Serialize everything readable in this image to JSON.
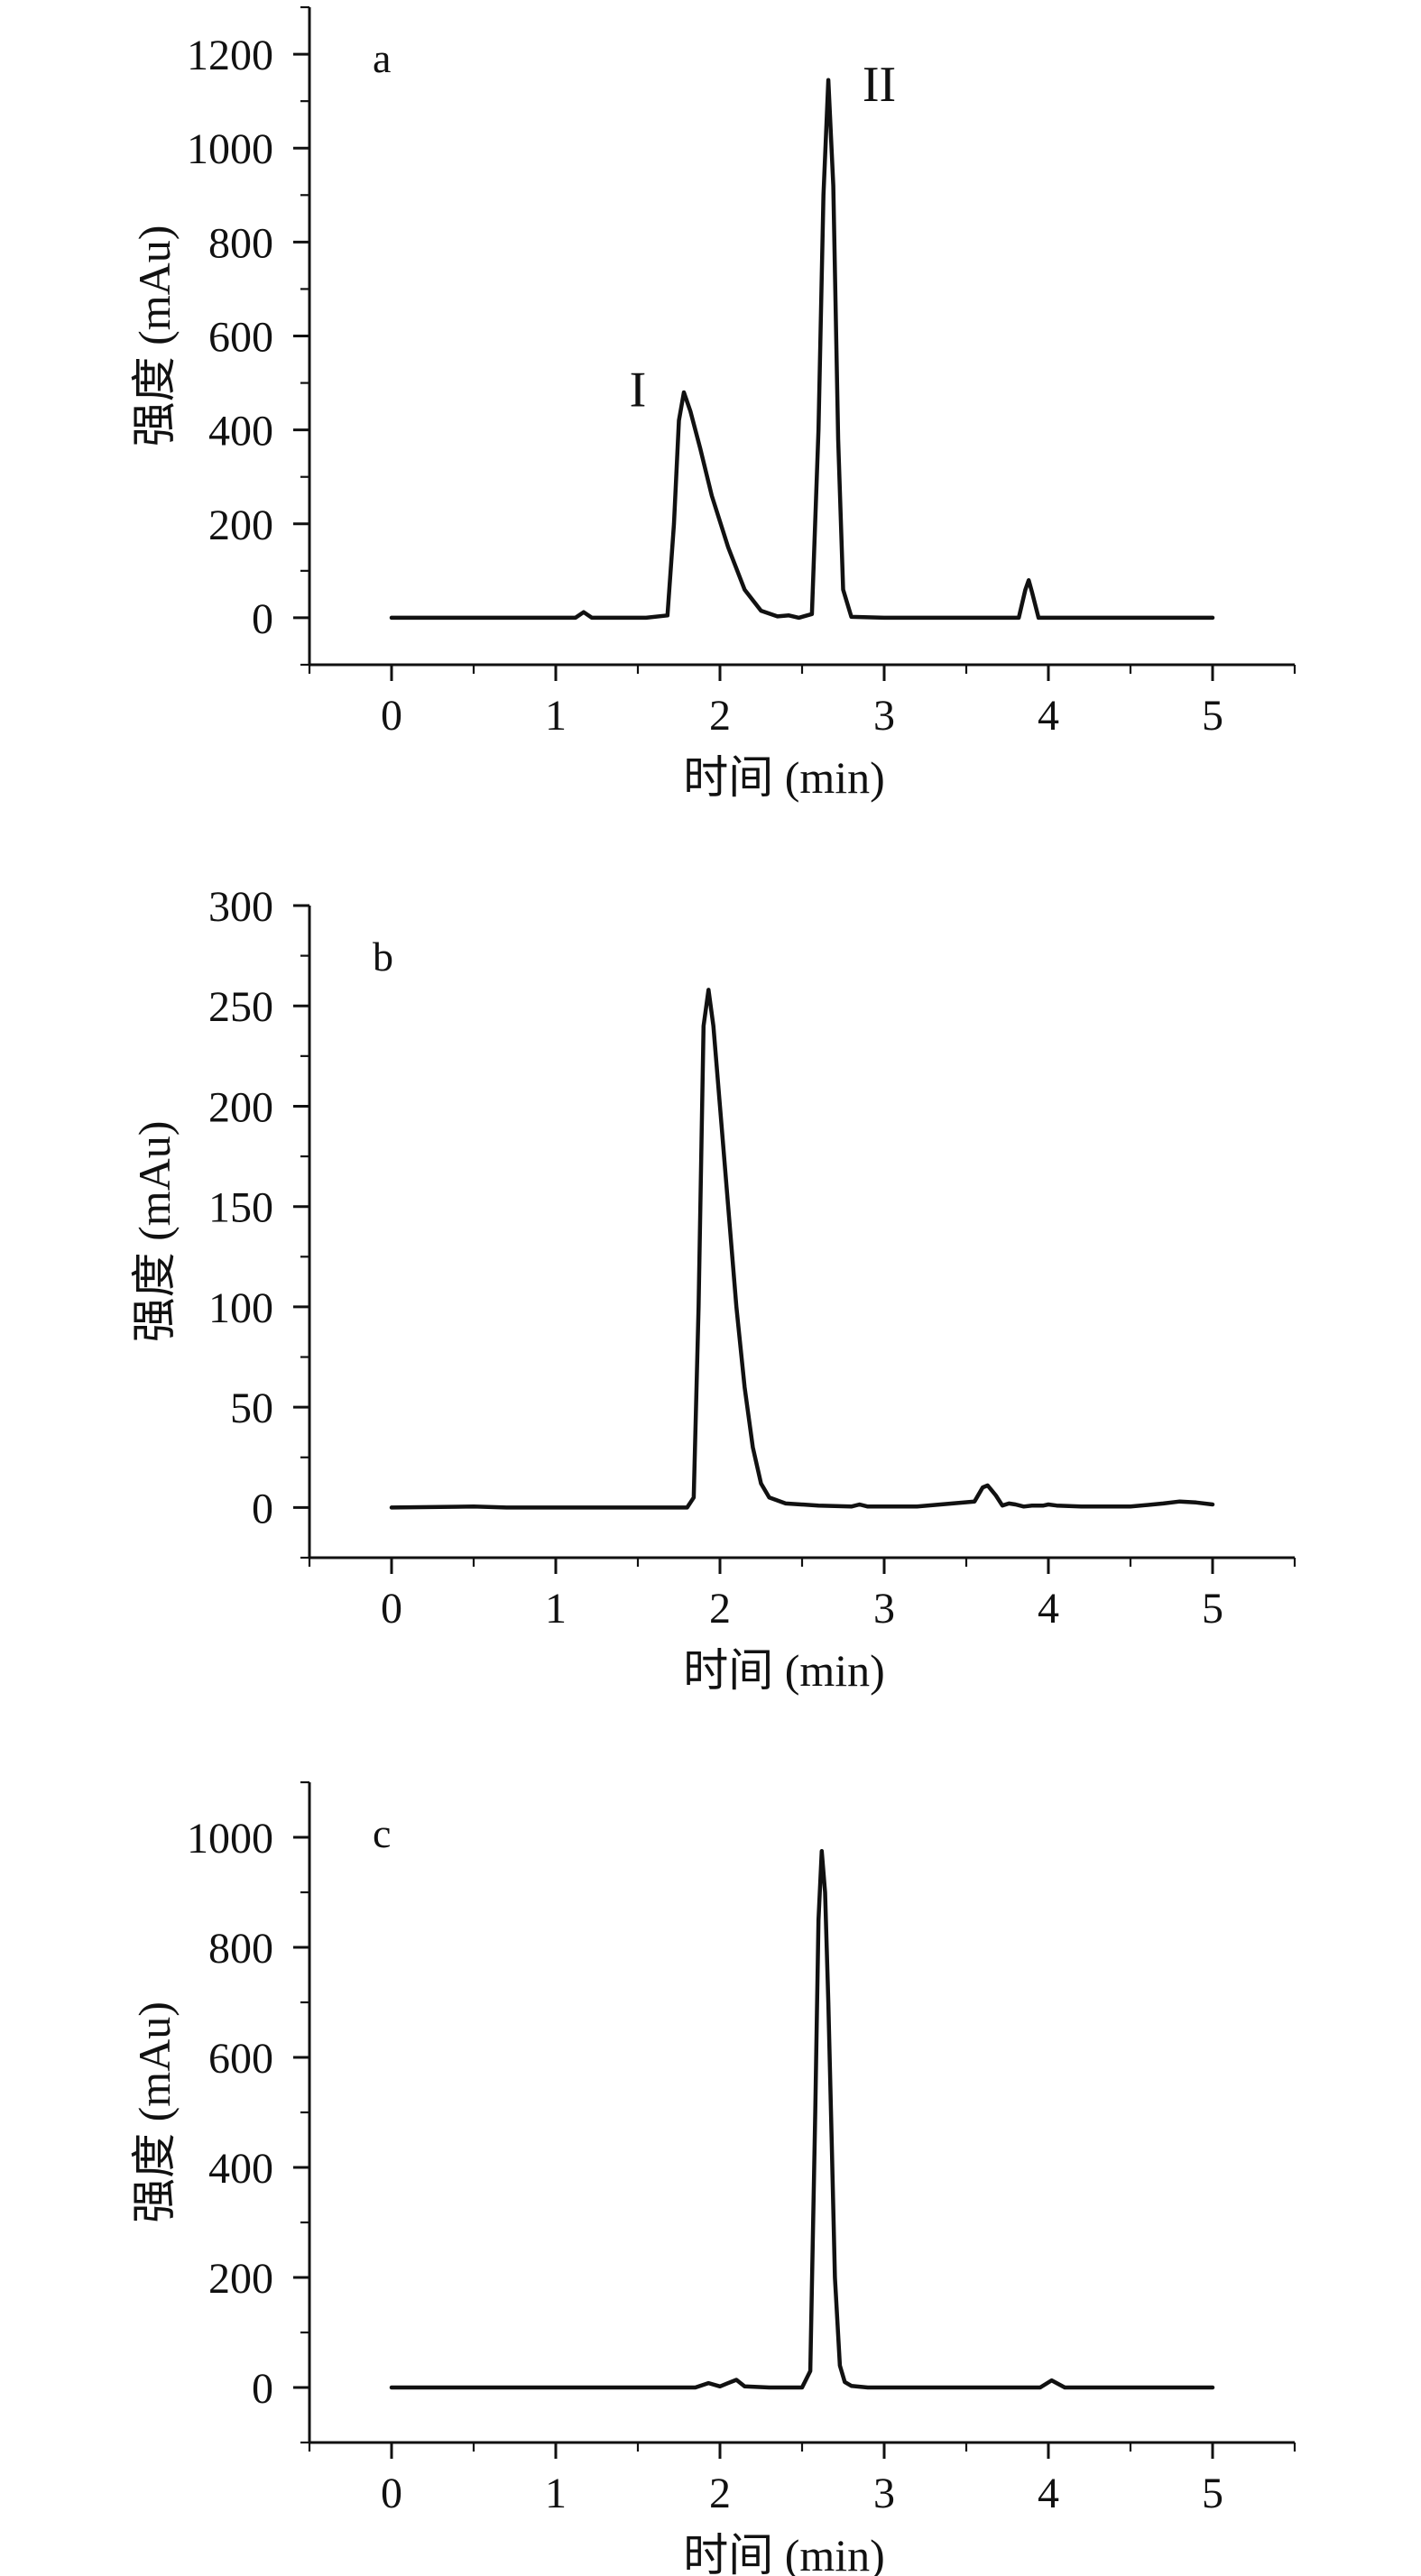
{
  "chart_data": [
    {
      "type": "line",
      "panel_label": "a",
      "xlabel": "时间 (min)",
      "ylabel": "强度 (mAu)",
      "xlim": [
        -0.5,
        5.5
      ],
      "ylim": [
        -100,
        1300
      ],
      "x_ticks": [
        0,
        1,
        2,
        3,
        4,
        5
      ],
      "y_ticks": [
        0,
        200,
        400,
        600,
        800,
        1000,
        1200
      ],
      "grid": false,
      "legend": "none",
      "series": [
        {
          "x": [
            0,
            0.5,
            1.0,
            1.12,
            1.17,
            1.22,
            1.3,
            1.55,
            1.68,
            1.72,
            1.75,
            1.78,
            1.82,
            1.88,
            1.95,
            2.05,
            2.15,
            2.25,
            2.35,
            2.42,
            2.48,
            2.56,
            2.6,
            2.63,
            2.66,
            2.69,
            2.72,
            2.75,
            2.8,
            3.0,
            3.5,
            3.82,
            3.86,
            3.88,
            3.9,
            3.94,
            4.5,
            5.0
          ],
          "y": [
            0,
            0,
            0,
            0,
            12,
            0,
            0,
            0,
            5,
            200,
            420,
            480,
            440,
            360,
            260,
            150,
            60,
            15,
            3,
            5,
            0,
            8,
            400,
            900,
            1145,
            920,
            380,
            60,
            2,
            0,
            0,
            0,
            60,
            80,
            55,
            0,
            0,
            0
          ]
        }
      ],
      "annotations": [
        {
          "text": "I",
          "x": 1.5,
          "y": 450
        },
        {
          "text": "II",
          "x": 2.97,
          "y": 1100
        }
      ]
    },
    {
      "type": "line",
      "panel_label": "b",
      "xlabel": "时间 (min)",
      "ylabel": "强度 (mAu)",
      "xlim": [
        -0.5,
        5.5
      ],
      "ylim": [
        -25,
        300
      ],
      "x_ticks": [
        0,
        1,
        2,
        3,
        4,
        5
      ],
      "y_ticks": [
        0,
        50,
        100,
        150,
        200,
        250,
        300
      ],
      "grid": false,
      "legend": "none",
      "series": [
        {
          "x": [
            0,
            0.5,
            0.7,
            1.0,
            1.5,
            1.8,
            1.84,
            1.87,
            1.9,
            1.93,
            1.96,
            2.0,
            2.05,
            2.1,
            2.15,
            2.2,
            2.25,
            2.3,
            2.4,
            2.6,
            2.8,
            2.85,
            2.9,
            3.2,
            3.55,
            3.6,
            3.63,
            3.68,
            3.72,
            3.76,
            3.8,
            3.85,
            3.9,
            3.97,
            4.0,
            4.05,
            4.2,
            4.5,
            4.7,
            4.8,
            4.9,
            5.0
          ],
          "y": [
            0,
            0.5,
            0,
            0,
            0,
            0,
            5,
            100,
            240,
            258,
            240,
            200,
            150,
            100,
            60,
            30,
            12,
            5,
            2,
            1,
            0.5,
            1.5,
            0.5,
            0.5,
            3,
            10,
            11,
            6,
            1,
            2,
            1.5,
            0.5,
            1,
            1,
            1.5,
            1,
            0.5,
            0.5,
            2,
            3,
            2.5,
            1.5
          ]
        }
      ]
    },
    {
      "type": "line",
      "panel_label": "c",
      "xlabel": "时间 (min)",
      "ylabel": "强度 (mAu)",
      "xlim": [
        -0.5,
        5.5
      ],
      "ylim": [
        -100,
        1100
      ],
      "x_ticks": [
        0,
        1,
        2,
        3,
        4,
        5
      ],
      "y_ticks": [
        0,
        200,
        400,
        600,
        800,
        1000
      ],
      "grid": false,
      "legend": "none",
      "series": [
        {
          "x": [
            0,
            0.5,
            1.0,
            1.5,
            1.85,
            1.93,
            2.0,
            2.05,
            2.1,
            2.15,
            2.3,
            2.5,
            2.55,
            2.58,
            2.6,
            2.62,
            2.64,
            2.66,
            2.68,
            2.7,
            2.73,
            2.76,
            2.8,
            2.9,
            3.5,
            3.95,
            4.02,
            4.1,
            4.5,
            5.0
          ],
          "y": [
            0,
            0,
            0,
            0,
            0,
            8,
            2,
            8,
            14,
            2,
            0,
            0,
            30,
            500,
            850,
            975,
            900,
            700,
            450,
            200,
            40,
            10,
            3,
            0,
            0,
            0,
            13,
            0,
            0,
            0
          ]
        }
      ]
    }
  ]
}
